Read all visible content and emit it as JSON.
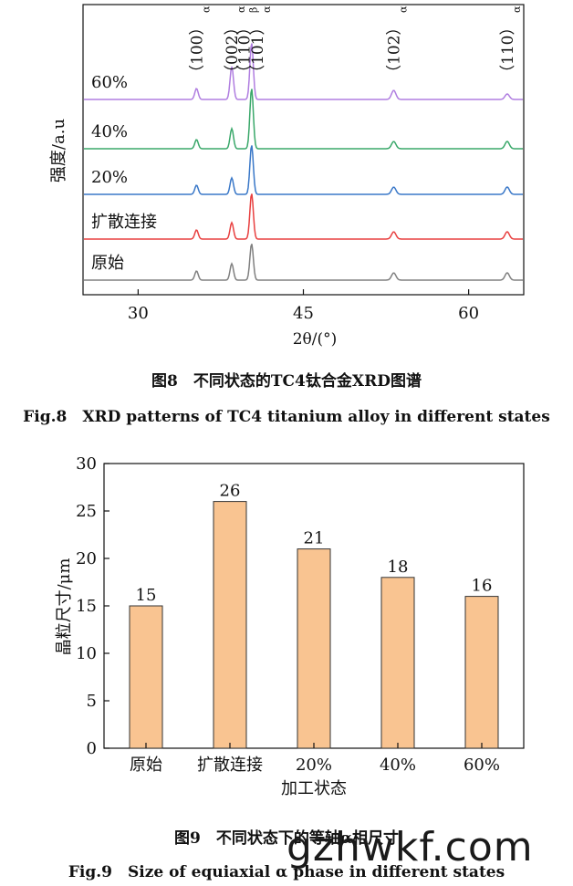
{
  "figure8": {
    "caption_cn": "图8　不同状态的TC4钛合金XRD图谱",
    "caption_en": "Fig.8　XRD patterns of TC4 titanium alloy in different states",
    "chart_data": {
      "type": "line",
      "title": "",
      "xlabel": "2θ/(°)",
      "ylabel": "强度/a.u",
      "xlim": [
        25,
        65
      ],
      "xticks": [
        "30",
        "45",
        "60"
      ],
      "grid": false,
      "series": [
        {
          "name": "原始",
          "color": "#808080",
          "peaks": [
            35.3,
            38.5,
            40.3,
            53.2,
            63.5
          ],
          "heights": [
            0.25,
            0.45,
            1.0,
            0.2,
            0.2
          ]
        },
        {
          "name": "扩散连接",
          "color": "#e84040",
          "peaks": [
            35.3,
            38.5,
            40.3,
            53.2,
            63.5
          ],
          "heights": [
            0.25,
            0.45,
            1.25,
            0.2,
            0.2
          ]
        },
        {
          "name": "20%",
          "color": "#3a78c8",
          "peaks": [
            35.3,
            38.5,
            40.3,
            53.2,
            63.5
          ],
          "heights": [
            0.25,
            0.45,
            1.35,
            0.2,
            0.2
          ]
        },
        {
          "name": "40%",
          "color": "#3aa86a",
          "peaks": [
            35.3,
            38.5,
            40.3,
            53.2,
            63.5
          ],
          "heights": [
            0.25,
            0.55,
            1.65,
            0.2,
            0.2
          ]
        },
        {
          "name": "60%",
          "color": "#b07ee0",
          "peaks": [
            35.3,
            38.5,
            40.3,
            53.2,
            63.5
          ],
          "heights": [
            0.3,
            0.9,
            1.55,
            0.25,
            0.15
          ]
        }
      ],
      "annotations": [
        {
          "label": "（100）",
          "phase": "α",
          "x": 35.3
        },
        {
          "label": "（002）",
          "phase": "α",
          "x": 38.5
        },
        {
          "label": "（110）",
          "phase": "β",
          "x": 39.6
        },
        {
          "label": "（101）",
          "phase": "α",
          "x": 40.8
        },
        {
          "label": "（102）",
          "phase": "α",
          "x": 53.2
        },
        {
          "label": "（110）",
          "phase": "α",
          "x": 63.5
        }
      ]
    }
  },
  "figure9": {
    "caption_cn": "图9　不同状态下的等轴α相尺寸",
    "caption_en": "Fig.9　Size of equiaxial α phase in different states",
    "chart_data": {
      "type": "bar",
      "title": "",
      "xlabel": "加工状态",
      "ylabel": "晶粒尺寸/μm",
      "categories": [
        "原始",
        "扩散连接",
        "20%",
        "40%",
        "60%"
      ],
      "values": [
        15,
        26,
        21,
        18,
        16
      ],
      "data_labels": [
        "15",
        "26",
        "21",
        "18",
        "16"
      ],
      "ylim": [
        0,
        30
      ],
      "yticks": [
        "0",
        "5",
        "10",
        "15",
        "20",
        "25",
        "30"
      ],
      "bar_color": "#f9c491",
      "grid": false
    }
  },
  "watermark": "gzhwkf.com"
}
